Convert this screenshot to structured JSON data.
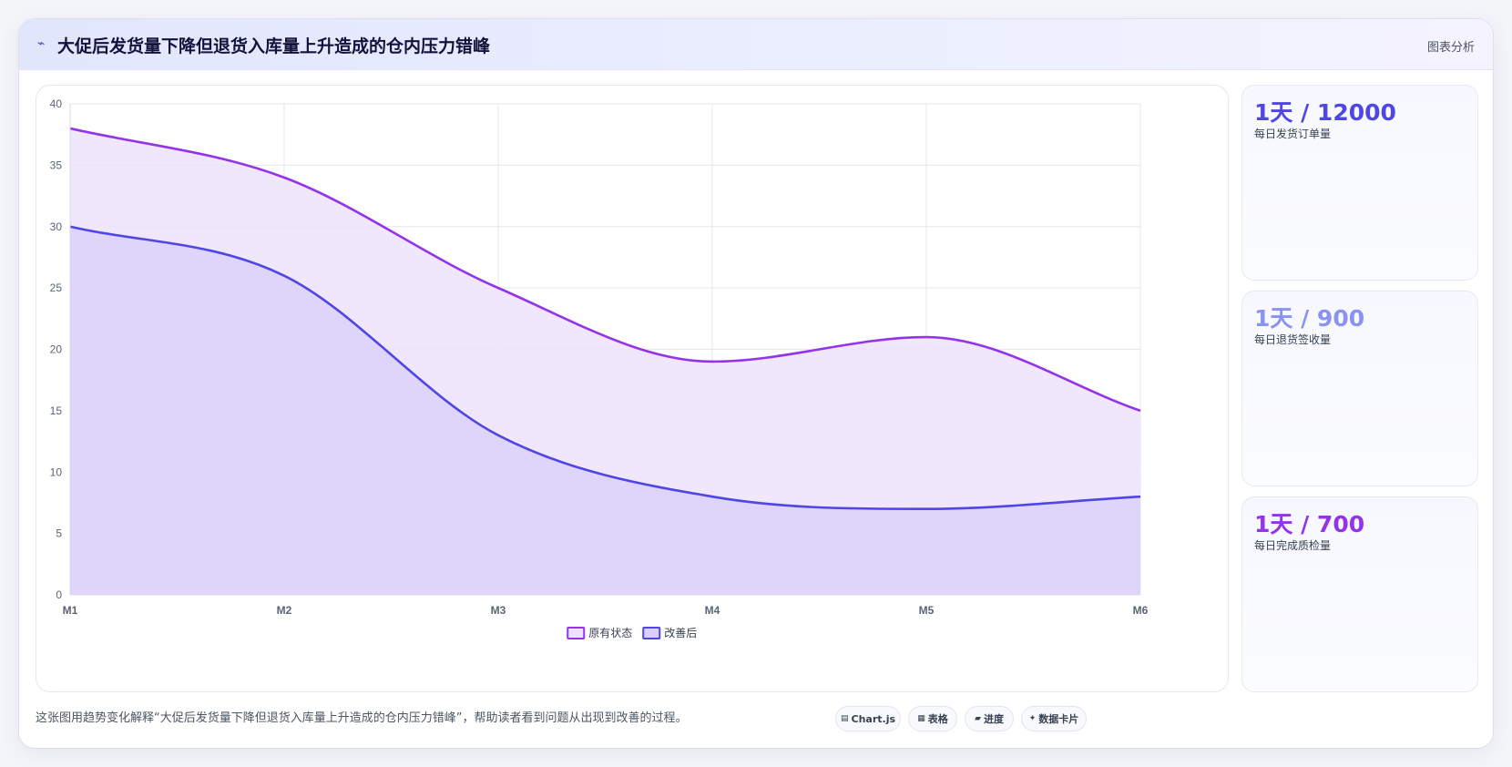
{
  "header": {
    "icon": "trend-icon",
    "title": "大促后发货量下降但退货入库量上升造成的仓内压力错峰",
    "tag": "图表分析"
  },
  "chart_data": {
    "type": "area",
    "categories": [
      "M1",
      "M2",
      "M3",
      "M4",
      "M5",
      "M6"
    ],
    "ylim": [
      0,
      40
    ],
    "yticks": [
      0,
      5,
      10,
      15,
      20,
      25,
      30,
      35,
      40
    ],
    "grid": true,
    "legend_position": "bottom-center",
    "series": [
      {
        "name": "原有状态",
        "values": [
          38,
          34,
          25,
          19,
          21,
          15
        ],
        "color": "#9333ea",
        "fill": "#efe3fb"
      },
      {
        "name": "改善后",
        "values": [
          30,
          26,
          13,
          8,
          7,
          8
        ],
        "color": "#4f46e5",
        "fill": "#dcd0f9"
      }
    ]
  },
  "kpis": [
    {
      "value": "1天 / 12000",
      "label": "每日发货订单量",
      "color": "#4f46e5"
    },
    {
      "value": "1天 / 900",
      "label": "每日退货签收量",
      "color": "#8b93f0"
    },
    {
      "value": "1天 / 700",
      "label": "每日完成质检量",
      "color": "#9333ea"
    }
  ],
  "footer": {
    "description": "这张图用趋势变化解释“大促后发货量下降但退货入库量上升造成的仓内压力错峰”，帮助读者看到问题从出现到改善的过程。",
    "chips": [
      {
        "icon": "chart-icon",
        "glyph": "▤",
        "label": "Chart.js"
      },
      {
        "icon": "table-icon",
        "glyph": "▦",
        "label": "表格"
      },
      {
        "icon": "progress-icon",
        "glyph": "▰",
        "label": "进度"
      },
      {
        "icon": "card-icon",
        "glyph": "✦",
        "label": "数据卡片"
      }
    ]
  }
}
